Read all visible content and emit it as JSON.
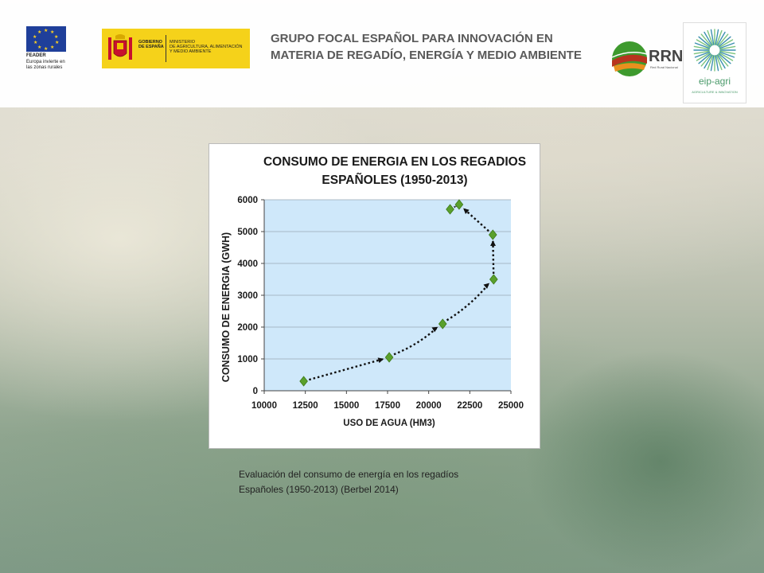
{
  "header": {
    "title_line1": "GRUPO FOCAL ESPAÑOL PARA INNOVACIÓN EN",
    "title_line2": "MATERIA DE REGADÍO, ENERGÍA Y MEDIO AMBIENTE",
    "eu_logo": {
      "feader": "FEADER",
      "line1": "Europa invierte en",
      "line2": "las zonas rurales"
    },
    "gob_logo": {
      "line1": "GOBIERNO",
      "line2": "DE ESPAÑA",
      "ministry1": "MINISTERIO",
      "ministry2": "DE AGRICULTURA, ALIMENTACIÓN",
      "ministry3": "Y MEDIO AMBIENTE"
    },
    "rrn_logo": {
      "text": "RRN",
      "sub": "Red Rural Nacional"
    },
    "eip_logo": {
      "text": "eip-agri",
      "sub": "AGRICULTURE & INNOVATION"
    }
  },
  "chart_data": {
    "type": "scatter",
    "title_line1": "CONSUMO DE ENERGIA EN LOS REGADIOS",
    "title_line2": "ESPAÑOLES (1950-2013)",
    "xlabel": "USO DE AGUA (HM3)",
    "ylabel": "CONSUMO DE ENERGIA (GWH)",
    "xlim": [
      10000,
      25000
    ],
    "ylim": [
      0,
      6000
    ],
    "x_ticks": [
      "10000",
      "12500",
      "15000",
      "17500",
      "20000",
      "22500",
      "25000"
    ],
    "y_ticks": [
      "0",
      "1000",
      "2000",
      "3000",
      "4000",
      "5000",
      "6000"
    ],
    "grid": true,
    "colors": {
      "plot_bg": "#cfe8fa",
      "marker": "#5aa02c",
      "marker_edge": "#3d7a1a",
      "arrow": "#111111",
      "grid": "#9aa8b4",
      "title": "#1a1a1a"
    },
    "series": [
      {
        "points": [
          {
            "x": 12400,
            "y": 300
          },
          {
            "x": 17600,
            "y": 1050
          },
          {
            "x": 20850,
            "y": 2100
          },
          {
            "x": 23950,
            "y": 3500
          },
          {
            "x": 23900,
            "y": 4900
          },
          {
            "x": 21850,
            "y": 5850
          },
          {
            "x": 21300,
            "y": 5700
          }
        ]
      }
    ]
  },
  "caption": {
    "line1": "Evaluación del consumo  de energía en los regadíos",
    "line2": "Españoles (1950-2013) (Berbel 2014)"
  }
}
